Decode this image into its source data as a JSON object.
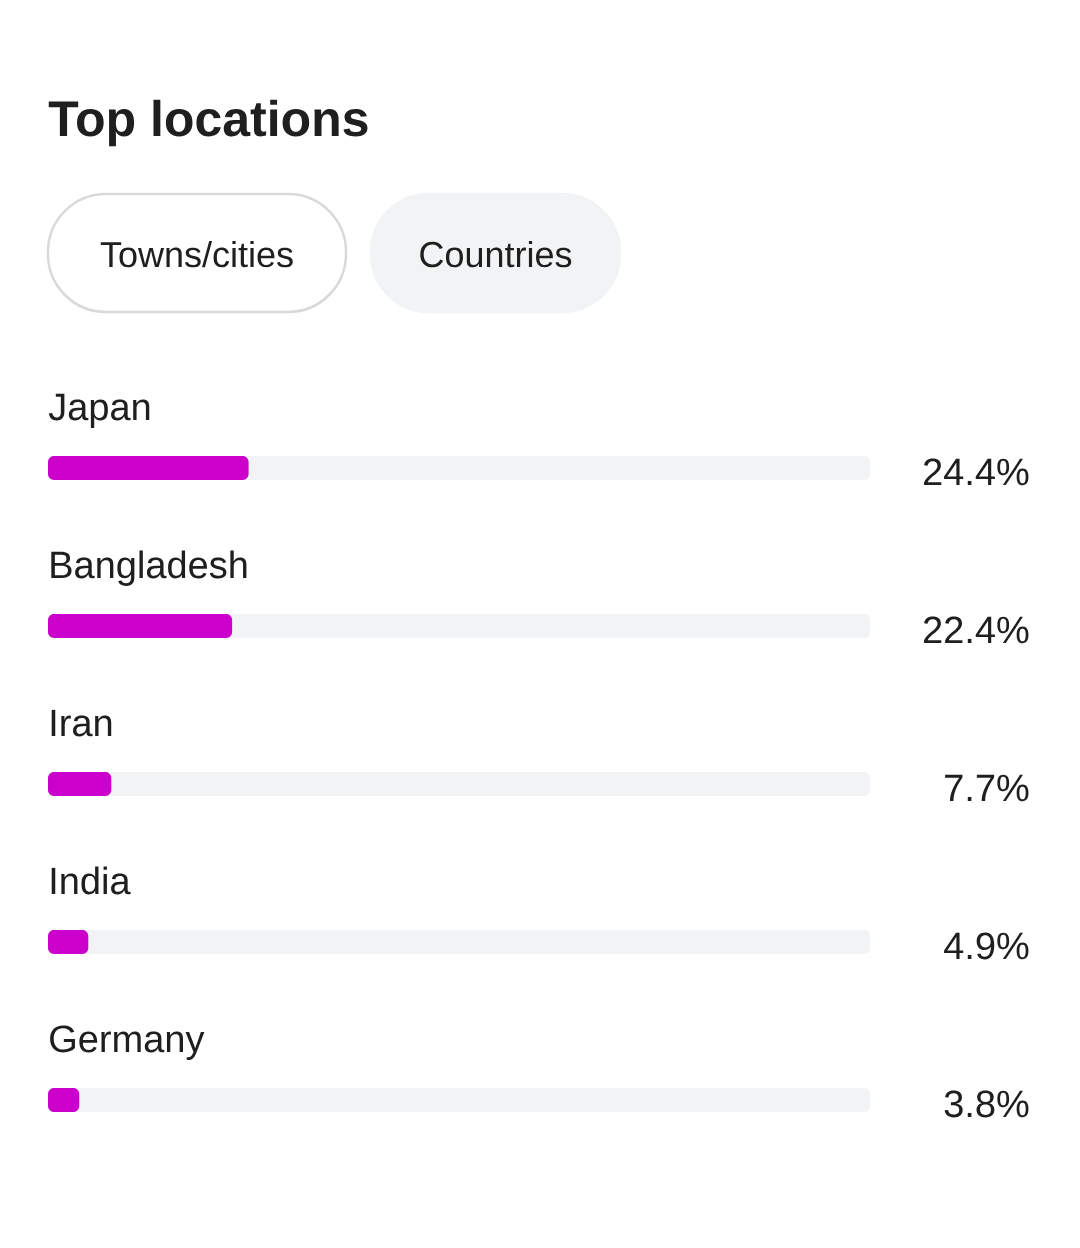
{
  "chart_data": {
    "type": "bar",
    "orientation": "horizontal",
    "title": "Top locations",
    "annotations": [
      "Towns/cities",
      "Countries"
    ],
    "categories": [
      "Japan",
      "Bangladesh",
      "Iran",
      "India",
      "Germany"
    ],
    "values": [
      24.4,
      22.4,
      7.7,
      4.9,
      3.8
    ],
    "value_labels": [
      "24.4%",
      "22.4%",
      "7.7%",
      "4.9%",
      "3.8%"
    ],
    "color": "#cc00cc",
    "xlim": [
      0,
      100
    ],
    "tick_labels": "y"
  }
}
